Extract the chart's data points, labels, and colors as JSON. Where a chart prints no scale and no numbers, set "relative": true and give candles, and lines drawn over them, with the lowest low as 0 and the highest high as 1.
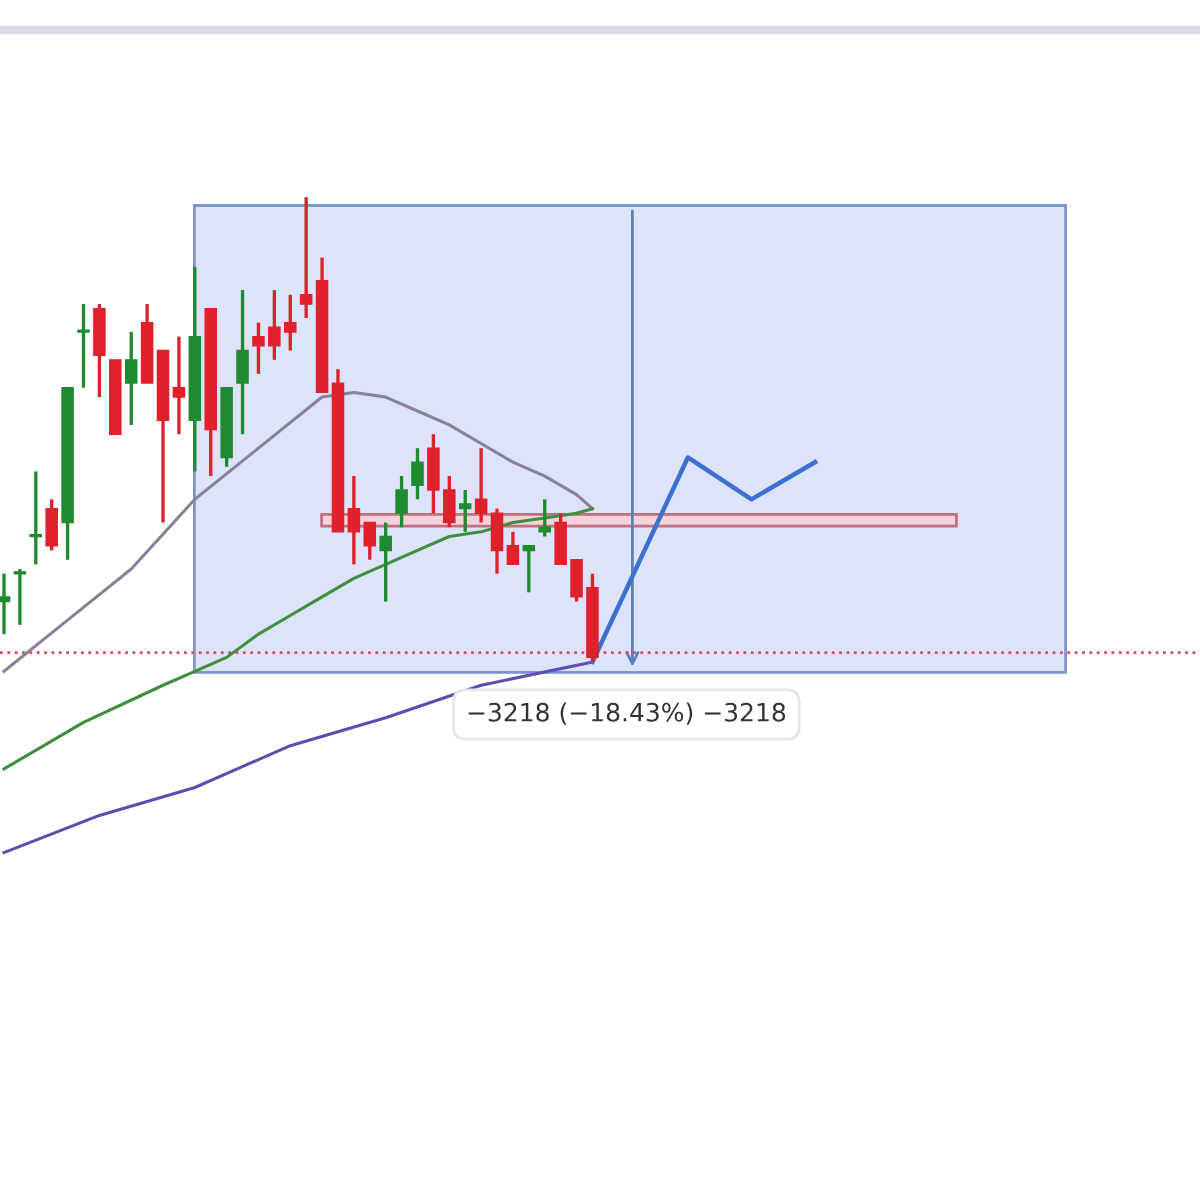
{
  "chart_data": {
    "type": "candlestick",
    "relative": true,
    "categories": [
      null,
      null,
      null,
      null,
      null,
      null,
      null,
      null,
      null,
      null,
      null,
      null,
      null,
      null,
      null,
      null,
      null,
      null,
      null,
      null,
      null,
      null,
      null,
      null,
      null,
      null,
      null,
      null,
      null,
      null,
      null,
      null,
      null,
      null,
      null,
      null,
      null,
      null,
      null,
      null,
      null,
      null,
      null,
      null,
      null,
      null,
      null,
      null,
      null,
      null,
      null,
      null,
      null,
      null,
      null,
      null,
      null,
      null,
      null,
      null,
      null,
      null,
      null,
      null,
      null,
      null,
      null,
      null,
      null,
      null,
      null,
      null,
      null,
      null,
      null,
      null
    ],
    "ohlc": [
      [
        0.13,
        0.19,
        0.06,
        0.14
      ],
      [
        0.19,
        0.2,
        0.08,
        0.19
      ],
      [
        0.27,
        0.41,
        0.21,
        0.27
      ],
      [
        0.33,
        0.35,
        0.24,
        0.25
      ],
      [
        0.3,
        0.59,
        0.22,
        0.59
      ],
      [
        0.71,
        0.77,
        0.59,
        0.71
      ],
      [
        0.76,
        0.77,
        0.57,
        0.66
      ],
      [
        0.65,
        0.65,
        0.49,
        0.49
      ],
      [
        0.6,
        0.71,
        0.51,
        0.65
      ],
      [
        0.73,
        0.77,
        0.6,
        0.6
      ],
      [
        0.67,
        0.67,
        0.3,
        0.52
      ],
      [
        0.59,
        0.7,
        0.49,
        0.57
      ],
      [
        0.52,
        0.85,
        0.41,
        0.7
      ],
      [
        0.76,
        0.76,
        0.4,
        0.5
      ],
      [
        0.44,
        0.59,
        0.42,
        0.59
      ],
      [
        0.6,
        0.8,
        0.49,
        0.67
      ],
      [
        0.7,
        0.73,
        0.62,
        0.68
      ],
      [
        0.72,
        0.8,
        0.65,
        0.68
      ],
      [
        0.73,
        0.79,
        0.67,
        0.71
      ],
      [
        0.79,
        1,
        0.74,
        0.77
      ],
      [
        0.82,
        0.87,
        0.58,
        0.58
      ],
      [
        0.6,
        0.63,
        0.28,
        0.28
      ],
      [
        0.33,
        0.4,
        0.21,
        0.28
      ],
      [
        0.3,
        0.3,
        0.22,
        0.25
      ],
      [
        0.24,
        0.3,
        0.13,
        0.27
      ],
      [
        0.32,
        0.4,
        0.29,
        0.37
      ],
      [
        0.38,
        0.46,
        0.35,
        0.43
      ],
      [
        0.46,
        0.49,
        0.32,
        0.37
      ],
      [
        0.37,
        0.4,
        0.29,
        0.3
      ],
      [
        0.33,
        0.37,
        0.28,
        0.34
      ],
      [
        0.35,
        0.46,
        0.3,
        0.32
      ],
      [
        0.32,
        0.33,
        0.19,
        0.24
      ],
      [
        0.25,
        0.28,
        0.21,
        0.21
      ],
      [
        0.24,
        0.25,
        0.15,
        0.25
      ],
      [
        0.28,
        0.35,
        0.27,
        0.29
      ],
      [
        0.3,
        0.32,
        0.21,
        0.21
      ],
      [
        0.22,
        0.22,
        0.13,
        0.14
      ],
      [
        0.16,
        0.19,
        0,
        0.01
      ],
      null,
      null,
      null,
      null,
      null,
      null,
      null,
      null,
      null,
      null,
      null,
      null,
      null,
      null,
      null,
      null,
      null,
      null,
      null,
      null,
      null,
      null,
      null,
      null,
      null,
      null,
      null,
      null,
      null,
      null,
      null,
      null,
      null,
      null,
      null,
      null,
      null,
      null
    ],
    "colors": [
      "#1f8a2f",
      "#1f8a2f",
      "#1f8a2f",
      "#e0202a",
      "#1f8a2f",
      "#1f8a2f",
      "#e0202a",
      "#e0202a",
      "#1f8a2f",
      "#e0202a",
      "#e0202a",
      "#e0202a",
      "#1f8a2f",
      "#e0202a",
      "#1f8a2f",
      "#1f8a2f",
      "#e0202a",
      "#e0202a",
      "#e0202a",
      "#e0202a",
      "#e0202a",
      "#e0202a",
      "#e0202a",
      "#e0202a",
      "#1f8a2f",
      "#1f8a2f",
      "#1f8a2f",
      "#e0202a",
      "#e0202a",
      "#1f8a2f",
      "#e0202a",
      "#e0202a",
      "#e0202a",
      "#1f8a2f",
      "#1f8a2f",
      "#e0202a",
      "#e0202a",
      "#e0202a",
      null,
      null,
      null,
      null,
      null,
      null,
      null,
      null,
      null,
      null,
      null,
      null,
      null,
      null,
      null,
      null,
      null,
      null,
      null,
      null,
      null,
      null,
      null,
      null,
      null,
      null,
      null,
      null,
      null,
      null,
      null,
      null,
      null,
      null,
      null,
      null,
      null,
      null
    ],
    "series": [
      {
        "type": "line",
        "color": "#8a8199",
        "values": [
          -0.02,
          null,
          null,
          null,
          0.09,
          null,
          null,
          null,
          0.2,
          null,
          null,
          null,
          0.35,
          null,
          null,
          null,
          0.46,
          null,
          null,
          null,
          0.57,
          null,
          0.58,
          null,
          0.57,
          null,
          0.54,
          null,
          0.51,
          null,
          0.47,
          null,
          0.43,
          null,
          0.4,
          null,
          0.36,
          0.33,
          null,
          null,
          null,
          null,
          null,
          null,
          null,
          null,
          null,
          null,
          null,
          null,
          null,
          null,
          null,
          null,
          null,
          null,
          null,
          null,
          null,
          null,
          null,
          null,
          null,
          null,
          null,
          null,
          null,
          null,
          null,
          null,
          null,
          null,
          null,
          null,
          null,
          null
        ]
      },
      {
        "type": "line",
        "color": "#3d8f3d",
        "values": [
          -0.23,
          null,
          null,
          null,
          null,
          -0.13,
          null,
          null,
          null,
          null,
          -0.05,
          null,
          -0.02,
          null,
          0.01,
          null,
          0.06,
          null,
          0.1,
          null,
          0.14,
          null,
          0.18,
          null,
          0.21,
          null,
          0.24,
          null,
          0.27,
          null,
          0.28,
          null,
          0.3,
          null,
          0.31,
          null,
          0.32,
          0.33,
          null,
          null,
          null,
          null,
          null,
          null,
          null,
          null,
          null,
          null,
          null,
          null,
          null,
          null,
          null,
          null,
          null,
          null,
          null,
          null,
          null,
          null,
          null,
          null,
          null,
          null,
          null,
          null,
          null,
          null,
          null,
          null,
          null,
          null,
          null,
          null,
          null,
          null
        ]
      },
      {
        "type": "line",
        "color": "#5a4fb0",
        "values": [
          -0.41,
          null,
          null,
          null,
          null,
          null,
          -0.33,
          null,
          null,
          null,
          null,
          null,
          -0.27,
          null,
          null,
          null,
          null,
          null,
          -0.18,
          null,
          null,
          null,
          null,
          null,
          -0.12,
          null,
          null,
          null,
          null,
          null,
          -0.05,
          null,
          null,
          null,
          null,
          null,
          null,
          0,
          null,
          null,
          null,
          null,
          null,
          null,
          null,
          null,
          null,
          null,
          null,
          null,
          null,
          null,
          null,
          null,
          null,
          null,
          null,
          null,
          null,
          null,
          null,
          null,
          null,
          null,
          null,
          null,
          null,
          null,
          null,
          null,
          null,
          null,
          null,
          null,
          null,
          null
        ]
      },
      {
        "type": "line",
        "color": "#3b6fd0",
        "values": [
          null,
          null,
          null,
          null,
          null,
          null,
          null,
          null,
          null,
          null,
          null,
          null,
          null,
          null,
          null,
          null,
          null,
          null,
          null,
          null,
          null,
          null,
          null,
          null,
          null,
          null,
          null,
          null,
          null,
          null,
          null,
          null,
          null,
          null,
          null,
          null,
          null,
          0,
          null,
          null,
          null,
          null,
          null,
          0.44,
          null,
          null,
          null,
          0.35,
          null,
          null,
          null,
          0.43,
          null,
          null,
          null,
          null,
          null,
          null,
          null,
          null,
          null,
          null,
          null,
          null,
          null,
          null,
          null,
          null,
          null,
          null,
          null,
          null,
          null,
          null,
          null,
          null
        ]
      }
    ],
    "ref_lines": [
      {
        "axis": "y",
        "value": 0.02,
        "color": "#d05060",
        "line_style": "dotted"
      }
    ],
    "annotations": [
      "−3218 (−18.43%) −3218"
    ]
  }
}
